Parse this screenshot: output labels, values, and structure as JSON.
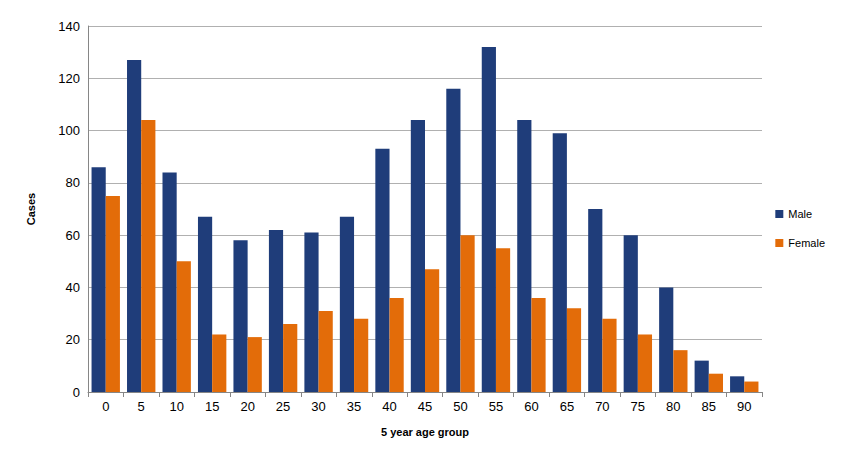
{
  "chart_data": {
    "type": "bar",
    "xlabel": "5 year age group",
    "ylabel": "Cases",
    "categories": [
      "0",
      "5",
      "10",
      "15",
      "20",
      "25",
      "30",
      "35",
      "40",
      "45",
      "50",
      "55",
      "60",
      "65",
      "70",
      "75",
      "80",
      "85",
      "90"
    ],
    "series": [
      {
        "name": "Male",
        "color": "#1f3d7a",
        "values": [
          86,
          127,
          84,
          67,
          58,
          62,
          61,
          67,
          93,
          104,
          116,
          132,
          104,
          99,
          70,
          60,
          40,
          12,
          6
        ]
      },
      {
        "name": "Female",
        "color": "#e36c09",
        "values": [
          75,
          104,
          50,
          22,
          21,
          26,
          31,
          28,
          36,
          47,
          60,
          55,
          36,
          32,
          28,
          22,
          16,
          7,
          4
        ]
      }
    ],
    "ylim": [
      0,
      140
    ],
    "yticks": [
      0,
      20,
      40,
      60,
      80,
      100,
      120,
      140
    ],
    "grid": true,
    "legend": "right"
  }
}
